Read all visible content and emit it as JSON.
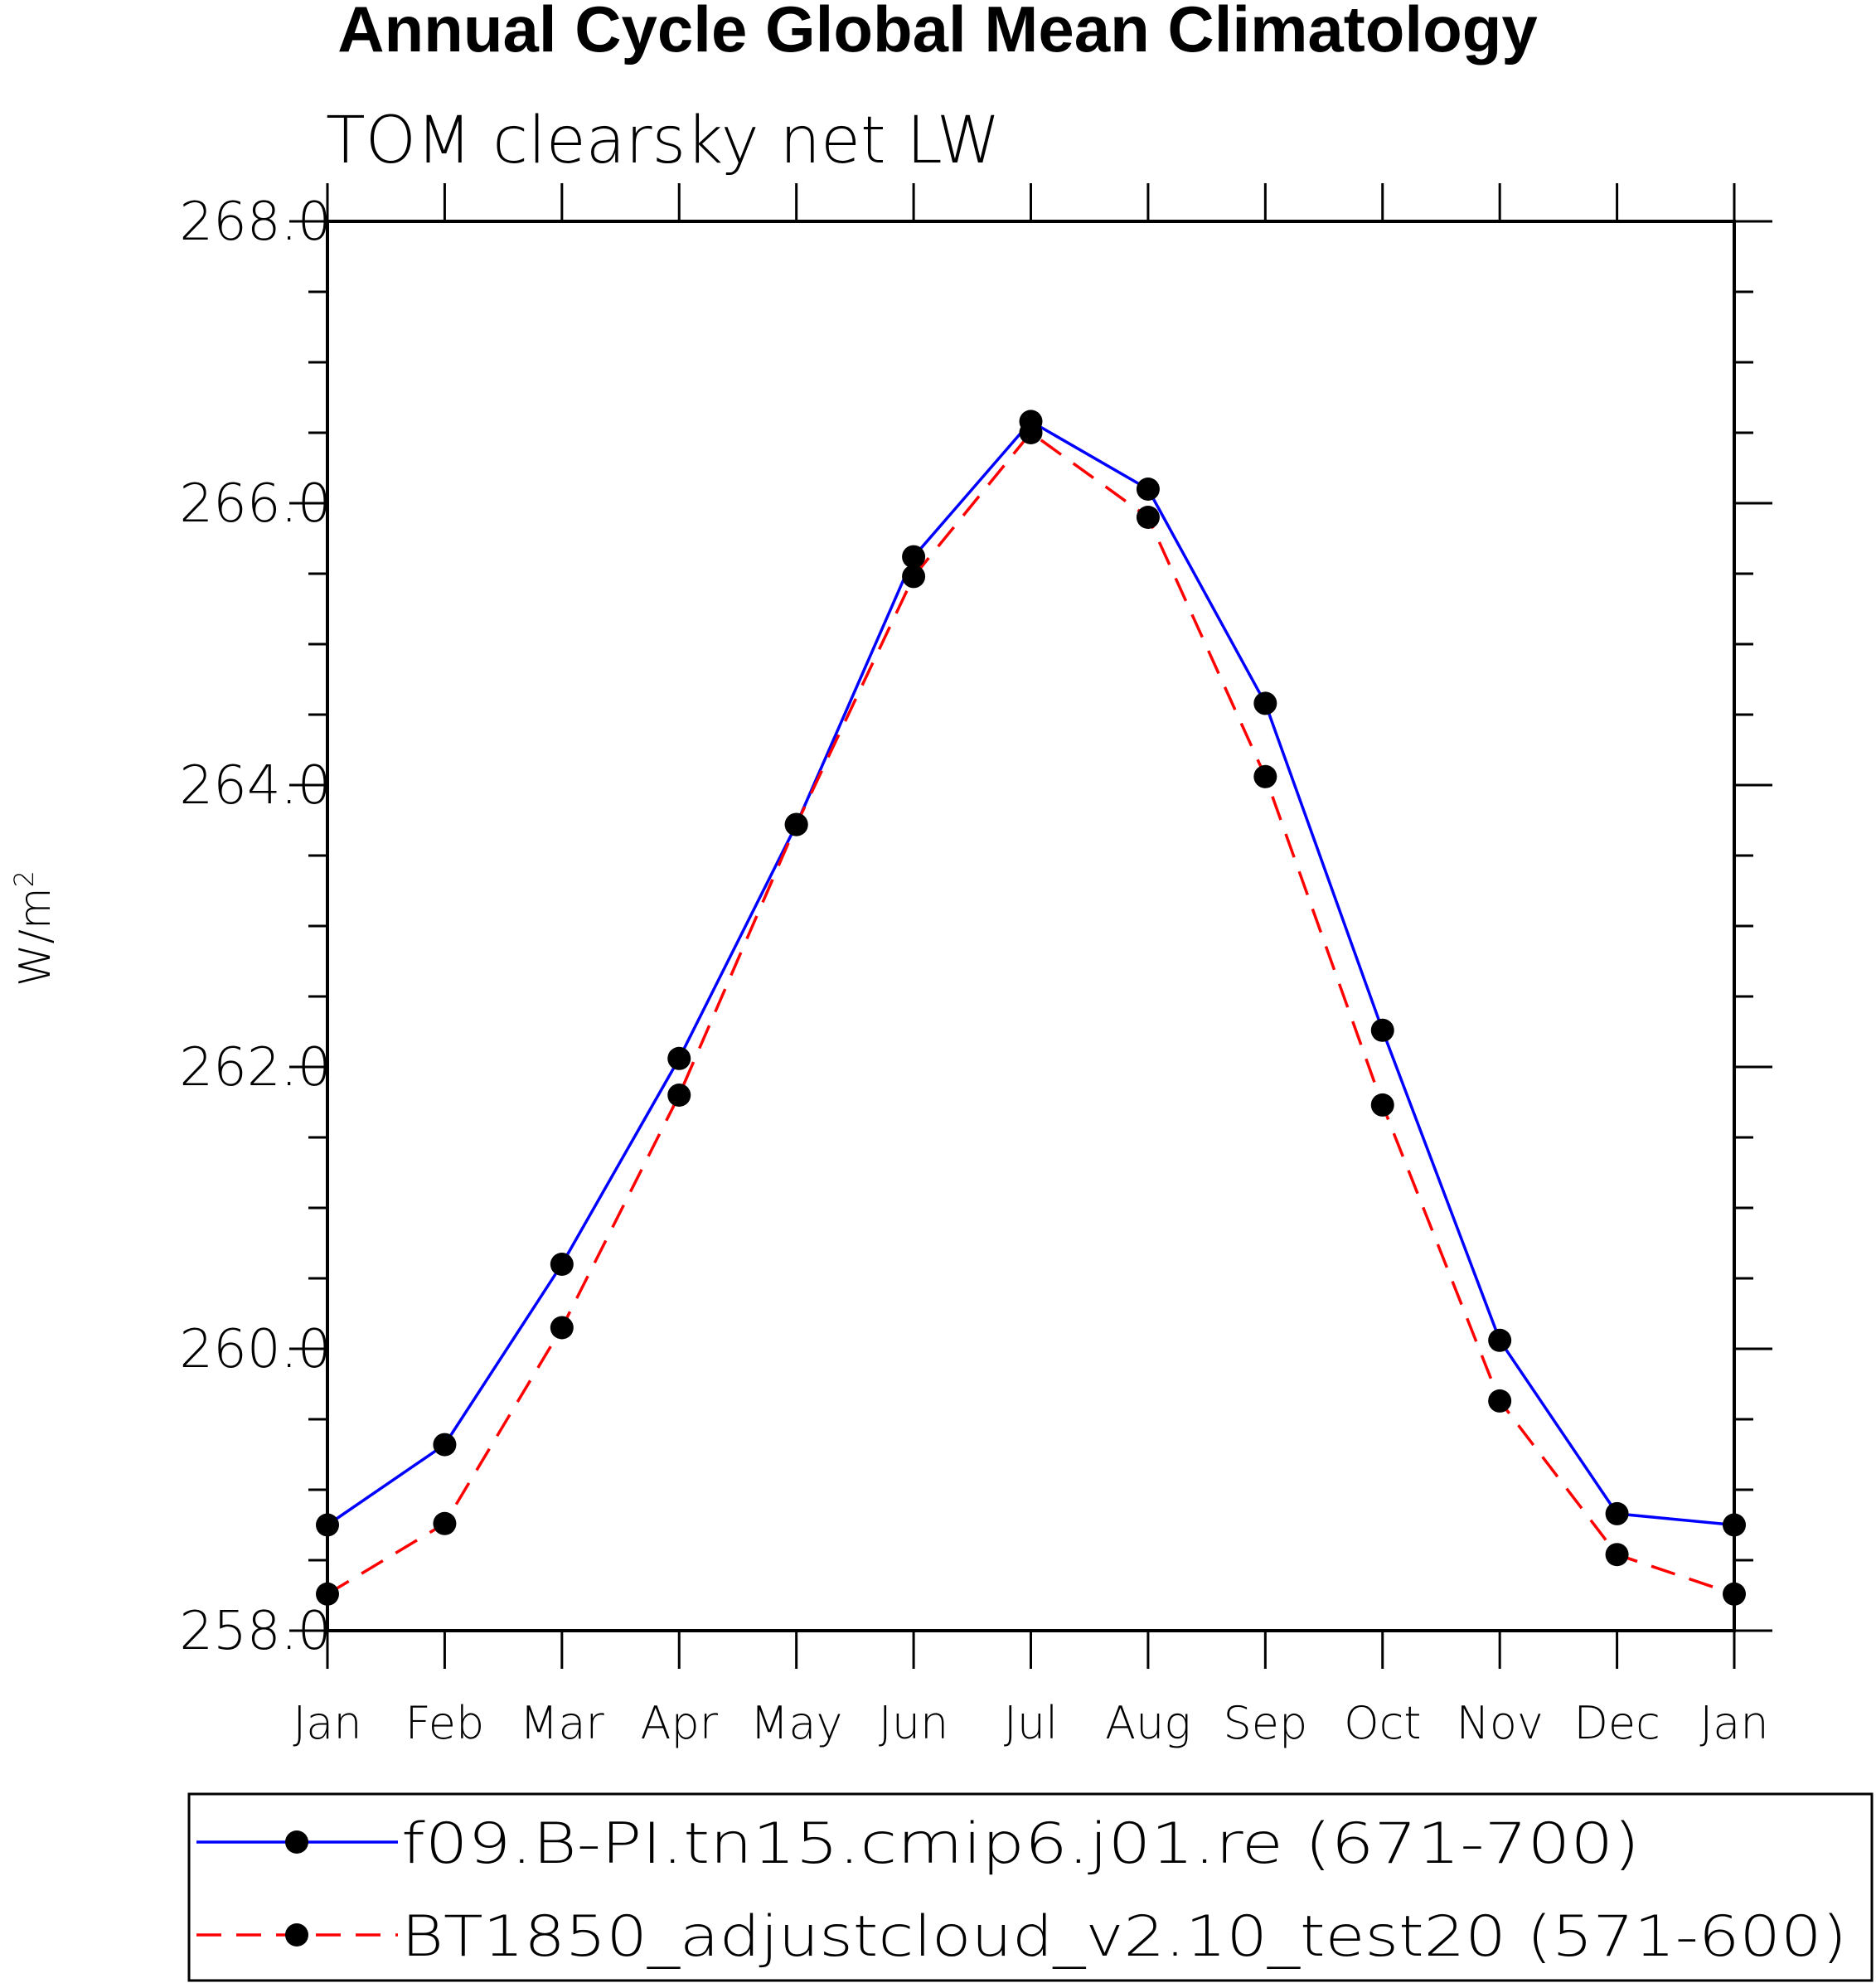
{
  "chart_data": {
    "type": "line",
    "title": "Annual Cycle Global Mean Climatology",
    "subtitle": "TOM clearsky net LW",
    "ylabel": "W/m",
    "ylabel_superscript": "2",
    "xlabel": "",
    "categories": [
      "Jan",
      "Feb",
      "Mar",
      "Apr",
      "May",
      "Jun",
      "Jul",
      "Aug",
      "Sep",
      "Oct",
      "Nov",
      "Dec",
      "Jan"
    ],
    "ylim": [
      258.0,
      268.0
    ],
    "yticks": [
      "258.0",
      "260.0",
      "262.0",
      "264.0",
      "266.0",
      "268.0"
    ],
    "legend_position": "bottom",
    "series": [
      {
        "name": "f09.B-PI.tn15.cmip6.j01.re (671-700)",
        "color": "#0000ff",
        "style": "solid",
        "values": [
          258.75,
          259.32,
          260.6,
          262.06,
          263.72,
          265.62,
          266.58,
          266.1,
          264.58,
          262.26,
          260.06,
          258.83,
          258.75
        ]
      },
      {
        "name": "BT1850_adjustcloud_v2.10_test20 (571-600)",
        "color": "#ff0000",
        "style": "dashed",
        "values": [
          258.26,
          258.76,
          260.15,
          261.8,
          263.72,
          265.48,
          266.5,
          265.9,
          264.06,
          261.73,
          259.63,
          258.54,
          258.26
        ]
      }
    ]
  }
}
